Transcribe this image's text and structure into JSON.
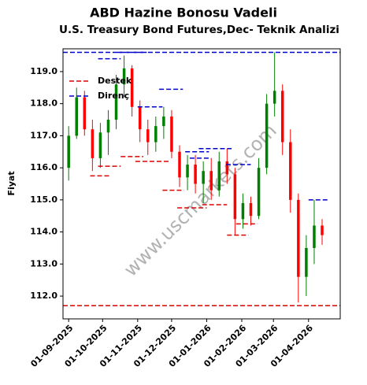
{
  "chart_data": {
    "type": "candlestick",
    "title": "ABD Hazine Bonosu Vadeli",
    "subtitle": "U.S. Treasury Bond Futures,Dec- Teknik Analizi",
    "y_label": "Fiyat",
    "watermark": "www.uscmarkets.com",
    "up_color": "#008000",
    "down_color": "#ff0000",
    "support_color": "#dd0000",
    "resistance_color": "#0000cc",
    "legend": "upper left",
    "legend_labels": {
      "support": "Destek",
      "resistance": "Direnç"
    },
    "x": [
      "2025-09-01",
      "2025-09-08",
      "2025-09-15",
      "2025-09-22",
      "2025-09-29",
      "2025-10-06",
      "2025-10-13",
      "2025-10-20",
      "2025-10-27",
      "2025-11-03",
      "2025-11-10",
      "2025-11-17",
      "2025-11-24",
      "2025-12-01",
      "2025-12-08",
      "2025-12-15",
      "2025-12-22",
      "2025-12-29",
      "2026-01-05",
      "2026-01-12",
      "2026-01-19",
      "2026-01-26",
      "2026-02-02",
      "2026-02-09",
      "2026-02-16",
      "2026-02-23",
      "2026-03-02",
      "2026-03-09",
      "2026-03-16",
      "2026-03-23",
      "2026-03-30",
      "2026-04-06",
      "2026-04-13"
    ],
    "open": [
      116.0,
      117.0,
      118.2,
      117.2,
      116.3,
      117.1,
      117.5,
      118.6,
      119.1,
      117.9,
      117.2,
      116.8,
      117.3,
      117.6,
      116.5,
      115.7,
      116.1,
      115.5,
      115.9,
      115.3,
      116.2,
      115.8,
      114.4,
      114.9,
      114.5,
      116.0,
      118.0,
      118.4,
      116.8,
      115.0,
      112.6,
      113.5,
      114.2
    ],
    "high": [
      117.3,
      118.5,
      118.4,
      117.5,
      117.4,
      117.8,
      118.9,
      119.5,
      119.2,
      118.1,
      117.5,
      117.6,
      117.9,
      117.8,
      116.7,
      116.4,
      116.4,
      116.2,
      116.3,
      116.5,
      116.6,
      116.0,
      115.2,
      115.1,
      116.3,
      118.3,
      119.6,
      118.6,
      117.2,
      115.2,
      113.9,
      115.0,
      114.4
    ],
    "low": [
      115.6,
      116.9,
      117.0,
      115.9,
      116.0,
      116.4,
      117.2,
      118.2,
      117.6,
      116.8,
      116.4,
      116.5,
      116.9,
      116.3,
      115.4,
      115.3,
      115.2,
      114.9,
      115.0,
      115.1,
      115.5,
      113.9,
      114.1,
      114.2,
      114.4,
      115.8,
      117.6,
      116.4,
      114.6,
      111.8,
      112.0,
      113.0,
      113.6
    ],
    "close": [
      117.0,
      118.2,
      117.2,
      116.3,
      117.1,
      117.5,
      118.6,
      119.1,
      117.9,
      117.2,
      116.8,
      117.3,
      117.6,
      116.5,
      115.7,
      116.1,
      115.5,
      115.9,
      115.3,
      116.2,
      115.8,
      114.4,
      114.9,
      114.5,
      116.0,
      118.0,
      118.4,
      116.8,
      115.0,
      112.6,
      113.5,
      114.2,
      113.9
    ],
    "support_levels": [
      {
        "start": "2025-09-20",
        "end": "2025-10-08",
        "value": 115.75
      },
      {
        "start": "2025-09-27",
        "end": "2025-10-17",
        "value": 116.05
      },
      {
        "start": "2025-10-17",
        "end": "2025-11-06",
        "value": 116.35
      },
      {
        "start": "2025-10-30",
        "end": "2025-11-30",
        "value": 116.2
      },
      {
        "start": "2025-11-23",
        "end": "2025-12-12",
        "value": 115.3
      },
      {
        "start": "2025-12-06",
        "end": "2026-01-01",
        "value": 114.75
      },
      {
        "start": "2025-12-28",
        "end": "2026-01-19",
        "value": 114.85
      },
      {
        "start": "2026-01-19",
        "end": "2026-02-07",
        "value": 113.9
      },
      {
        "start": "2026-01-27",
        "end": "2026-02-15",
        "value": 114.25
      },
      {
        "start": "2025-08-27",
        "end": "2026-04-29",
        "value": 111.7
      }
    ],
    "resistance_levels": [
      {
        "start": "2025-09-27",
        "end": "2025-10-17",
        "value": 119.4
      },
      {
        "start": "2025-10-14",
        "end": "2025-11-09",
        "value": 119.6
      },
      {
        "start": "2025-11-01",
        "end": "2025-11-23",
        "value": 117.9
      },
      {
        "start": "2025-11-20",
        "end": "2025-12-11",
        "value": 118.45
      },
      {
        "start": "2025-12-13",
        "end": "2026-01-03",
        "value": 116.5
      },
      {
        "start": "2025-12-17",
        "end": "2026-01-05",
        "value": 116.3
      },
      {
        "start": "2025-12-25",
        "end": "2026-01-23",
        "value": 116.6
      },
      {
        "start": "2026-01-18",
        "end": "2026-02-09",
        "value": 116.1
      },
      {
        "start": "2026-04-01",
        "end": "2026-04-19",
        "value": 115.0
      },
      {
        "start": "2025-08-27",
        "end": "2026-04-29",
        "value": 119.6
      }
    ],
    "xlim": [
      "2025-08-27",
      "2026-04-29"
    ],
    "xticks": [
      {
        "value": "2025-09-01",
        "label": "01-09-2025"
      },
      {
        "value": "2025-10-01",
        "label": "01-10-2025"
      },
      {
        "value": "2025-11-01",
        "label": "01-11-2025"
      },
      {
        "value": "2025-12-01",
        "label": "01-12-2025"
      },
      {
        "value": "2026-01-01",
        "label": "01-01-2026"
      },
      {
        "value": "2026-02-01",
        "label": "01-02-2026"
      },
      {
        "value": "2026-03-01",
        "label": "01-03-2026"
      },
      {
        "value": "2026-04-01",
        "label": "01-04-2026"
      }
    ],
    "ylim": [
      111.29,
      119.71
    ],
    "yticks": [
      {
        "value": 112,
        "label": "112.0"
      },
      {
        "value": 113,
        "label": "113.0"
      },
      {
        "value": 114,
        "label": "114.0"
      },
      {
        "value": 115,
        "label": "115.0"
      },
      {
        "value": 116,
        "label": "116.0"
      },
      {
        "value": 117,
        "label": "117.0"
      },
      {
        "value": 118,
        "label": "118.0"
      },
      {
        "value": 119,
        "label": "119.0"
      }
    ]
  }
}
